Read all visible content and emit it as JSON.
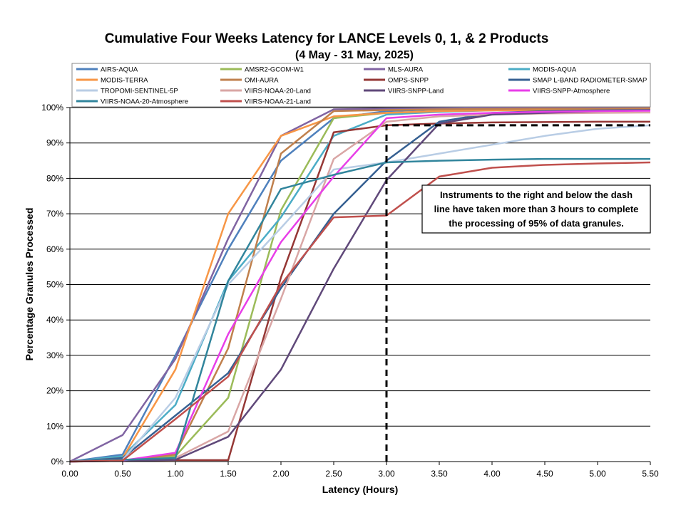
{
  "chart_data": {
    "type": "line",
    "title": "Cumulative Four Weeks Latency  for LANCE Levels 0, 1, & 2 Products",
    "subtitle": "(4  May   -  31  May,  2025)",
    "xlabel": "Latency (Hours)",
    "ylabel": "Percentage Granules Processed",
    "x": [
      0.0,
      0.5,
      1.0,
      1.5,
      2.0,
      2.5,
      3.0,
      3.5,
      4.0,
      4.5,
      5.0,
      5.5
    ],
    "xlim": [
      0,
      5.5
    ],
    "ylim": [
      0,
      100
    ],
    "x_ticks": [
      "0.00",
      "0.50",
      "1.00",
      "1.50",
      "2.00",
      "2.50",
      "3.00",
      "3.50",
      "4.00",
      "4.50",
      "5.00",
      "5.50"
    ],
    "y_ticks": [
      "0%",
      "10%",
      "20%",
      "30%",
      "40%",
      "50%",
      "60%",
      "70%",
      "80%",
      "90%",
      "100%"
    ],
    "grid": "horizontal",
    "legend_position": "top",
    "series": [
      {
        "name": "AIRS-AQUA",
        "color": "#4F81BD",
        "values": [
          0,
          2,
          30,
          60,
          85,
          97,
          99,
          99.5,
          99.7,
          99.8,
          99.9,
          99.9
        ]
      },
      {
        "name": "AMSR2-GCOM-W1",
        "color": "#9BBB59",
        "values": [
          0,
          0.2,
          1.5,
          18,
          71,
          97,
          98.5,
          99,
          99.3,
          99.5,
          99.6,
          99.7
        ]
      },
      {
        "name": "MLS-AURA",
        "color": "#8064A2",
        "values": [
          0,
          7.5,
          29,
          63,
          92,
          99.5,
          99.7,
          99.8,
          99.9,
          99.9,
          99.9,
          99.9
        ]
      },
      {
        "name": "MODIS-AQUA",
        "color": "#4BACC6",
        "values": [
          0,
          1.5,
          16,
          51,
          69,
          92,
          98,
          98.8,
          99.2,
          99.4,
          99.5,
          99.6
        ]
      },
      {
        "name": "MODIS-TERRA",
        "color": "#F79646",
        "values": [
          0,
          1,
          26,
          70,
          92,
          97.5,
          98.5,
          99,
          99.2,
          99.3,
          99.4,
          99.5
        ]
      },
      {
        "name": "OMI-AURA",
        "color": "#C0804D",
        "values": [
          0,
          0.3,
          2,
          32,
          87,
          99,
          99.3,
          99.5,
          99.6,
          99.7,
          99.7,
          99.8
        ]
      },
      {
        "name": "OMPS-SNPP",
        "color": "#953735",
        "values": [
          0,
          0.3,
          0.4,
          0.4,
          52,
          93,
          95,
          95.5,
          95.8,
          95.9,
          96,
          96
        ]
      },
      {
        "name": "SMAP L-BAND RADIOMETER-SMAP",
        "color": "#366092",
        "values": [
          0,
          1,
          13,
          25,
          49,
          70,
          85,
          96,
          98.5,
          99,
          99.2,
          99.3
        ]
      },
      {
        "name": "TROPOMI-SENTINEL-5P",
        "color": "#B9CDE5",
        "values": [
          0,
          0.5,
          18,
          50,
          66,
          82.5,
          84.5,
          87,
          89.5,
          92,
          94,
          95
        ]
      },
      {
        "name": "VIIRS-NOAA-20-Land",
        "color": "#D9A6A5",
        "values": [
          0,
          0.2,
          1,
          8.5,
          46,
          85.5,
          96,
          97.5,
          98,
          98.3,
          98.5,
          98.6
        ]
      },
      {
        "name": "VIIRS-SNPP-Land",
        "color": "#60497A",
        "values": [
          0,
          0.2,
          0.5,
          7,
          26,
          54.5,
          79.5,
          95.5,
          98,
          98.5,
          99,
          99.2
        ]
      },
      {
        "name": "VIIRS-SNPP-Atmosphere",
        "color": "#E83EE8",
        "values": [
          0,
          0.3,
          2.5,
          36,
          62,
          80.5,
          97,
          98,
          98.5,
          98.8,
          99,
          99.1
        ]
      },
      {
        "name": "VIIRS-NOAA-20-Atmosphere",
        "color": "#31859C",
        "values": [
          0,
          0.5,
          1,
          51,
          77,
          81,
          84.5,
          85,
          85.3,
          85.5,
          85.5,
          85.5
        ]
      },
      {
        "name": "VIIRS-NOAA-21-Land",
        "color": "#C0504D",
        "values": [
          0,
          0.3,
          12,
          24,
          50,
          69,
          69.5,
          80.5,
          83,
          83.8,
          84.2,
          84.5
        ]
      }
    ],
    "threshold": {
      "x": 3.0,
      "y": 95,
      "style": "dashed"
    },
    "annotation": "Instruments to the right and below the dash line have taken more than 3 hours to complete the processing of 95% of data granules.",
    "annotation_lines": [
      "Instruments to the right and below the dash",
      "line have taken more than 3 hours to complete",
      "the processing of 95% of data granules."
    ]
  }
}
